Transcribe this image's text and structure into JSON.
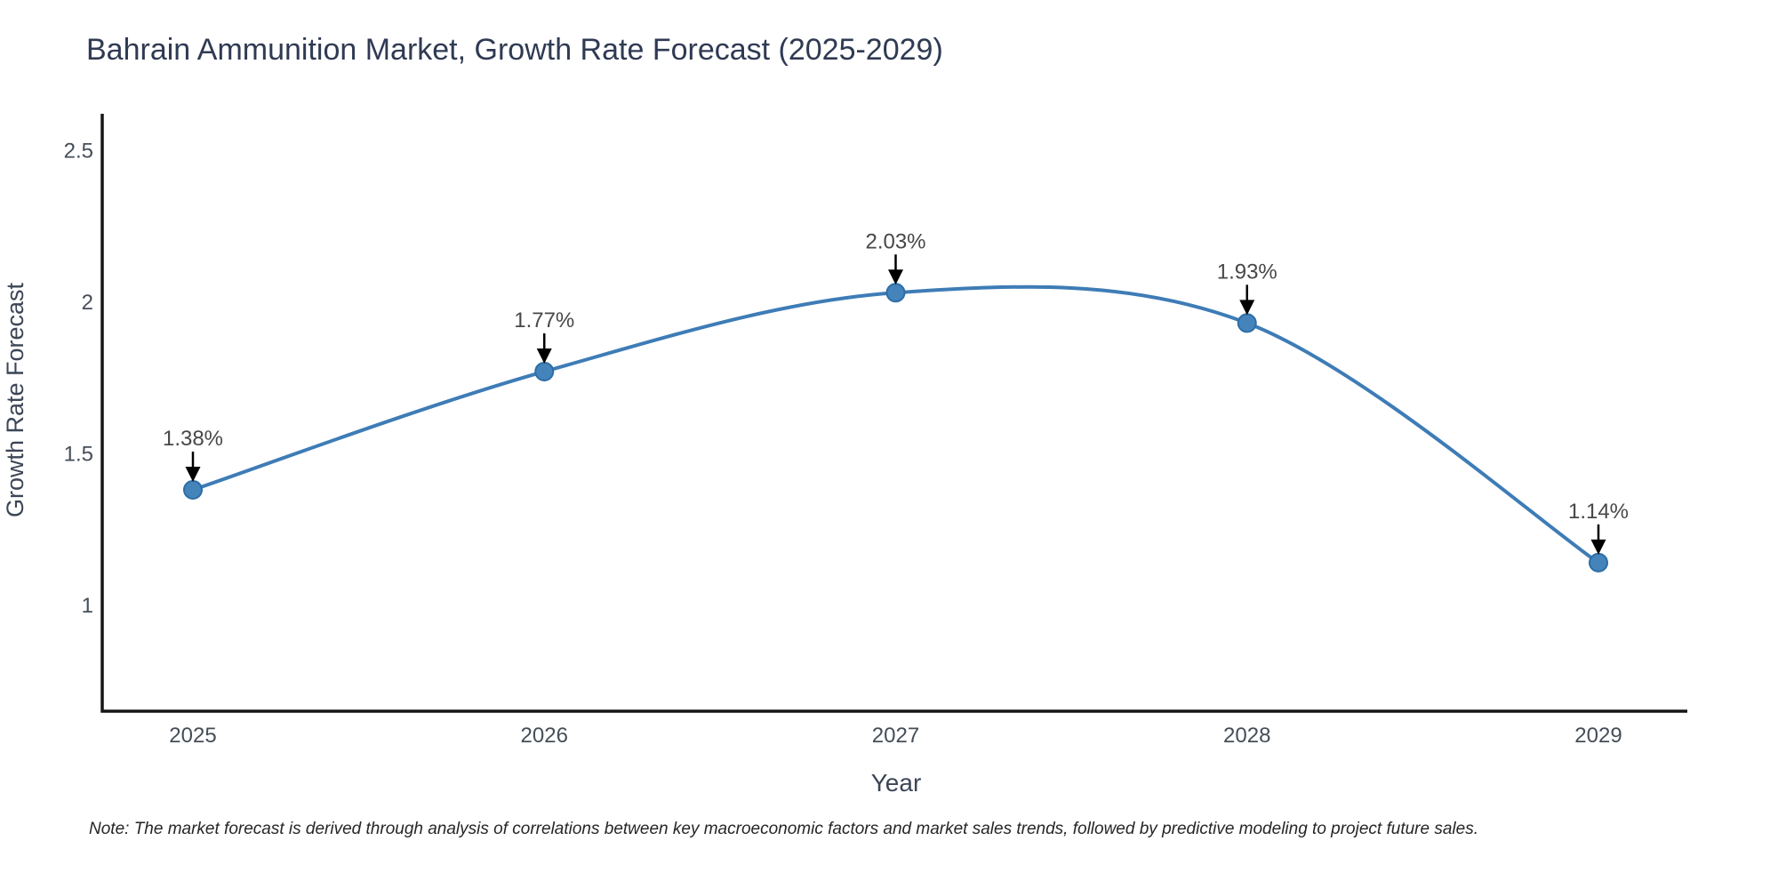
{
  "chart_data": {
    "type": "line",
    "title": "Bahrain Ammunition Market, Growth Rate Forecast (2025-2029)",
    "xlabel": "Year",
    "ylabel": "Growth Rate Forecast",
    "categories": [
      "2025",
      "2026",
      "2027",
      "2028",
      "2029"
    ],
    "series": [
      {
        "name": "Growth Rate Forecast",
        "values": [
          1.38,
          1.77,
          2.03,
          1.93,
          1.14
        ],
        "point_labels": [
          "1.38%",
          "1.77%",
          "2.03%",
          "1.93%",
          "1.14%"
        ]
      }
    ],
    "yticks": {
      "values": [
        1,
        1.5,
        2,
        2.5
      ],
      "labels": [
        "1",
        "1.5",
        "2",
        "2.5"
      ]
    },
    "ylim": [
      0.65,
      2.62
    ],
    "line_shape": "spline",
    "grid": false,
    "legend_position": "none",
    "annotation_style": "down-arrow-above-point",
    "note": "Note: The market forecast is derived through analysis of correlations between key macroeconomic factors and market sales trends, followed by predictive modeling to project future sales.",
    "colors": {
      "line": "#3e7cb6",
      "marker_fill": "#4484ba",
      "marker_stroke": "#2e6da6",
      "axis": "#161616",
      "title": "#2f3a53",
      "tick": "#454e58",
      "data_label": "#474747",
      "note": "#262626",
      "arrow": "#000000",
      "background": "#ffffff"
    }
  }
}
